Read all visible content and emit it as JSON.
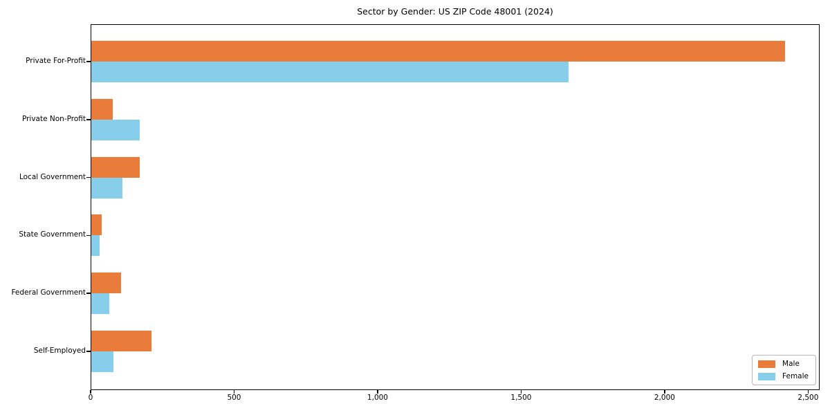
{
  "title": "Sector by Gender: US ZIP Code 48001 (2024)",
  "chart_data": {
    "type": "bar",
    "orientation": "horizontal",
    "title": "Sector by Gender: US ZIP Code 48001 (2024)",
    "xlabel": "",
    "ylabel": "",
    "categories": [
      "Private For-Profit",
      "Private Non-Profit",
      "Local Government",
      "State Government",
      "Federal Government",
      "Self-Employed"
    ],
    "series": [
      {
        "name": "Male",
        "color": "#ea7c3b",
        "values": [
          2420,
          78,
          170,
          38,
          105,
          212
        ]
      },
      {
        "name": "Female",
        "color": "#87ceeb",
        "values": [
          1665,
          170,
          110,
          32,
          65,
          80
        ]
      }
    ],
    "xlim": [
      0,
      2540
    ],
    "x_ticks": [
      0,
      500,
      1000,
      1500,
      2000,
      2500
    ],
    "x_tick_labels": [
      "0",
      "500",
      "1,000",
      "1,500",
      "2,000",
      "2,500"
    ],
    "grid": false,
    "legend": {
      "position": "lower right",
      "entries": [
        "Male",
        "Female"
      ]
    }
  }
}
